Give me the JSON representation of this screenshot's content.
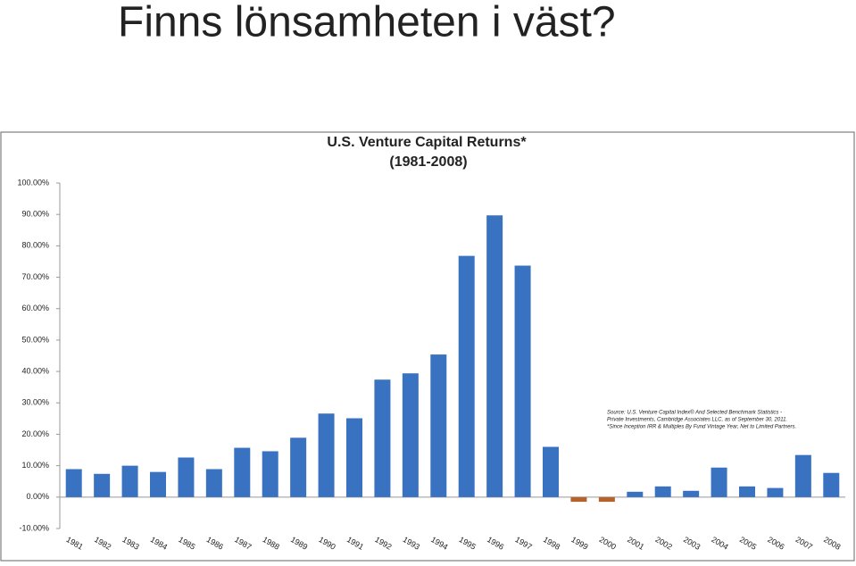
{
  "slide_title": "Finns lönsamheten i väst?",
  "chart_data": {
    "type": "bar",
    "title": "U.S. Venture Capital Returns*",
    "subtitle": "(1981-2008)",
    "source_note": [
      "Source:  U.S. Venture Capital Index® And Selected Benchmark Statistics -",
      "Private Investments, Cambridge Associates LLC, as of September 30, 2011.",
      "*Since Inception IRR & Multiples By Fund Vintage Year, Net to Limited Partners."
    ],
    "categories": [
      "1981",
      "1982",
      "1983",
      "1984",
      "1985",
      "1986",
      "1987",
      "1988",
      "1989",
      "1990",
      "1991",
      "1992",
      "1993",
      "1994",
      "1995",
      "1996",
      "1997",
      "1998",
      "1999",
      "2000",
      "2001",
      "2002",
      "2003",
      "2004",
      "2005",
      "2006",
      "2007",
      "2008"
    ],
    "values": [
      8.9,
      7.4,
      10.0,
      8.0,
      12.6,
      8.9,
      15.7,
      14.6,
      18.9,
      26.6,
      25.1,
      37.4,
      39.4,
      45.4,
      76.8,
      89.7,
      73.7,
      16.0,
      -1.5,
      -1.5,
      1.7,
      3.4,
      2.0,
      9.4,
      3.4,
      2.9,
      13.4,
      7.7
    ],
    "color": "#3a72c2",
    "negative_color": "#b5622c",
    "ylim": [
      -10,
      100
    ],
    "yticks": [
      {
        "value": -10,
        "label": "-10.00%"
      },
      {
        "value": 0,
        "label": "0.00%"
      },
      {
        "value": 10,
        "label": "10.00%"
      },
      {
        "value": 20,
        "label": "20.00%"
      },
      {
        "value": 30,
        "label": "30.00%"
      },
      {
        "value": 40,
        "label": "40.00%"
      },
      {
        "value": 50,
        "label": "50.00%"
      },
      {
        "value": 60,
        "label": "60.00%"
      },
      {
        "value": 70,
        "label": "70.00%"
      },
      {
        "value": 80,
        "label": "80.00%"
      },
      {
        "value": 90,
        "label": "90.00%"
      },
      {
        "value": 100,
        "label": "100.00%"
      }
    ],
    "grid": false
  }
}
